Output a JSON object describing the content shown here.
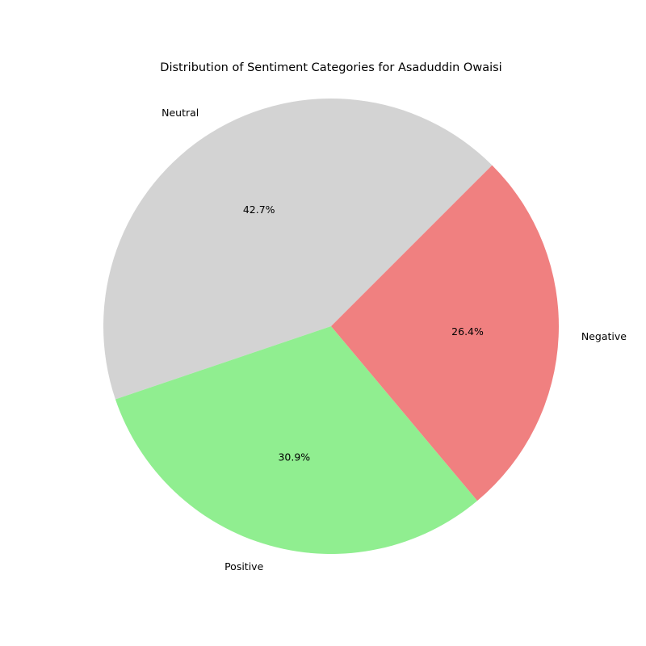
{
  "chart_data": {
    "type": "pie",
    "title": "Distribution of Sentiment Categories for Asaduddin Owaisi",
    "categories": [
      "Neutral",
      "Positive",
      "Negative"
    ],
    "values": [
      42.7,
      30.9,
      26.4
    ],
    "percent_labels": [
      "42.7%",
      "30.9%",
      "26.4%"
    ],
    "colors": [
      "#d3d3d3",
      "#90ee90",
      "#f08080"
    ],
    "start_angle_deg": 45,
    "direction": "counterclockwise"
  }
}
